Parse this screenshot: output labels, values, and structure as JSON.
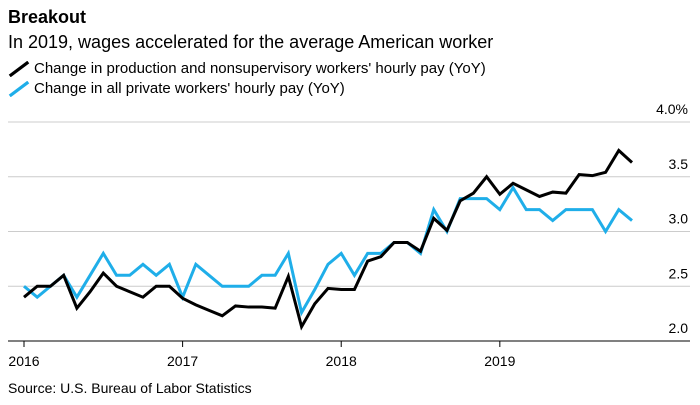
{
  "title": "Breakout",
  "subtitle": "In 2019, wages accelerated for the average American worker",
  "source": "Source: U.S. Bureau of Labor Statistics",
  "chart_data": {
    "type": "line",
    "title": "Breakout",
    "subtitle": "In 2019, wages accelerated for the average American worker",
    "xlabel": "",
    "ylabel": "",
    "xlim": [
      "2016-01",
      "2019-12"
    ],
    "ylim": [
      2.0,
      4.0
    ],
    "grid": true,
    "legend_position": "top-left",
    "x_ticks": [
      "2016",
      "2017",
      "2018",
      "2019"
    ],
    "y_ticks": [
      "2.0",
      "2.5",
      "3.0",
      "3.5",
      "4.0%"
    ],
    "x": [
      "2016-01",
      "2016-02",
      "2016-03",
      "2016-04",
      "2016-05",
      "2016-06",
      "2016-07",
      "2016-08",
      "2016-09",
      "2016-10",
      "2016-11",
      "2016-12",
      "2017-01",
      "2017-02",
      "2017-03",
      "2017-04",
      "2017-05",
      "2017-06",
      "2017-07",
      "2017-08",
      "2017-09",
      "2017-10",
      "2017-11",
      "2017-12",
      "2018-01",
      "2018-02",
      "2018-03",
      "2018-04",
      "2018-05",
      "2018-06",
      "2018-07",
      "2018-08",
      "2018-09",
      "2018-10",
      "2018-11",
      "2018-12",
      "2019-01",
      "2019-02",
      "2019-03",
      "2019-04",
      "2019-05",
      "2019-06",
      "2019-07",
      "2019-08",
      "2019-09",
      "2019-10",
      "2019-11"
    ],
    "series": [
      {
        "name": "Change in production and nonsupervisory workers' hourly pay (YoY)",
        "color": "#000000",
        "values": [
          2.4,
          2.5,
          2.5,
          2.6,
          2.3,
          2.45,
          2.62,
          2.5,
          2.45,
          2.4,
          2.5,
          2.5,
          2.39,
          2.33,
          2.28,
          2.23,
          2.32,
          2.31,
          2.31,
          2.3,
          2.59,
          2.13,
          2.34,
          2.48,
          2.47,
          2.47,
          2.73,
          2.77,
          2.9,
          2.9,
          2.82,
          3.12,
          3.01,
          3.28,
          3.35,
          3.5,
          3.34,
          3.44,
          3.38,
          3.32,
          3.36,
          3.35,
          3.52,
          3.51,
          3.54,
          3.74,
          3.63
        ]
      },
      {
        "name": "Change in all private workers' hourly pay (YoY)",
        "color": "#1faee9",
        "values": [
          2.5,
          2.4,
          2.5,
          2.6,
          2.4,
          2.6,
          2.8,
          2.6,
          2.6,
          2.7,
          2.6,
          2.7,
          2.4,
          2.7,
          2.6,
          2.5,
          2.5,
          2.5,
          2.6,
          2.6,
          2.8,
          2.26,
          2.47,
          2.7,
          2.8,
          2.6,
          2.8,
          2.8,
          2.9,
          2.9,
          2.8,
          3.2,
          3.0,
          3.3,
          3.3,
          3.3,
          3.2,
          3.4,
          3.2,
          3.2,
          3.1,
          3.2,
          3.2,
          3.2,
          3.0,
          3.2,
          3.1
        ]
      }
    ]
  }
}
